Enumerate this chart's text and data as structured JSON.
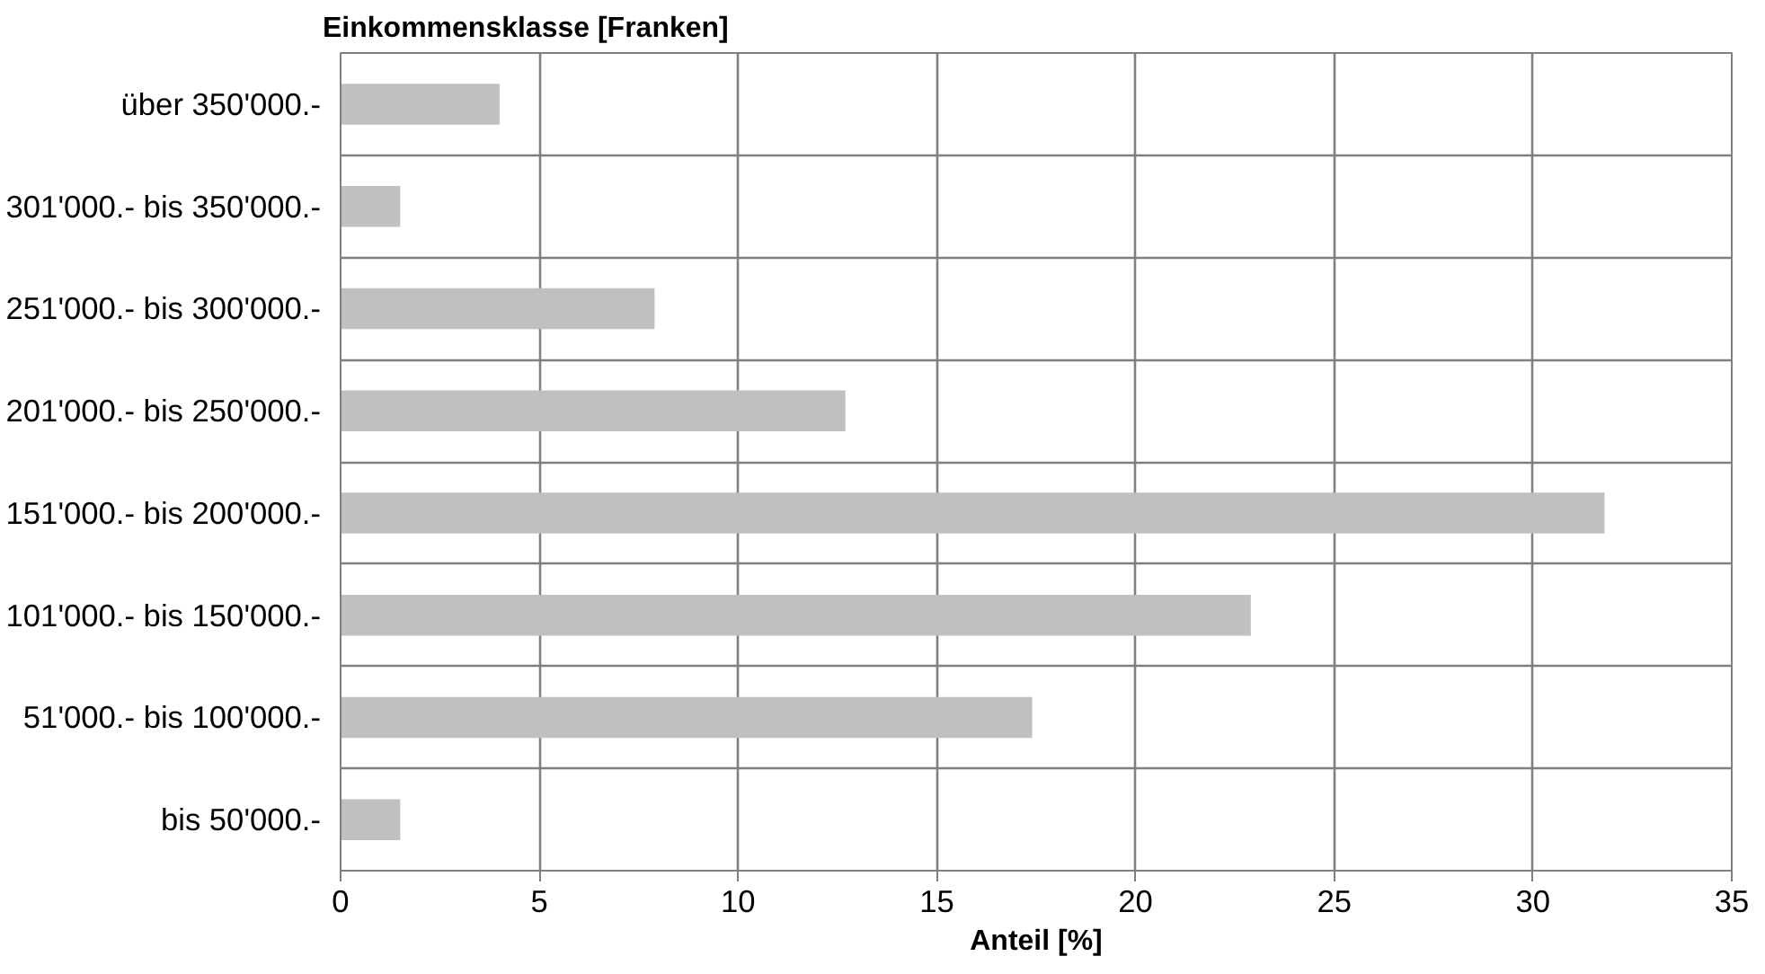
{
  "chart_data": {
    "type": "bar",
    "orientation": "horizontal",
    "ylabel": "Einkommensklasse [Franken]",
    "xlabel": "Anteil [%]",
    "categories": [
      "über 350'000.-",
      "301'000.- bis 350'000.-",
      "251'000.- bis 300'000.-",
      "201'000.- bis 250'000.-",
      "151'000.- bis 200'000.-",
      "101'000.- bis 150'000.-",
      "51'000.- bis 100'000.-",
      "bis 50'000.-"
    ],
    "values": [
      4.0,
      1.5,
      7.9,
      12.7,
      31.8,
      22.9,
      17.4,
      1.5
    ],
    "color": "#c0c0c0",
    "xlim": [
      0,
      35
    ],
    "xticks": [
      0,
      5,
      10,
      15,
      20,
      25,
      30,
      35
    ],
    "grid": true
  }
}
